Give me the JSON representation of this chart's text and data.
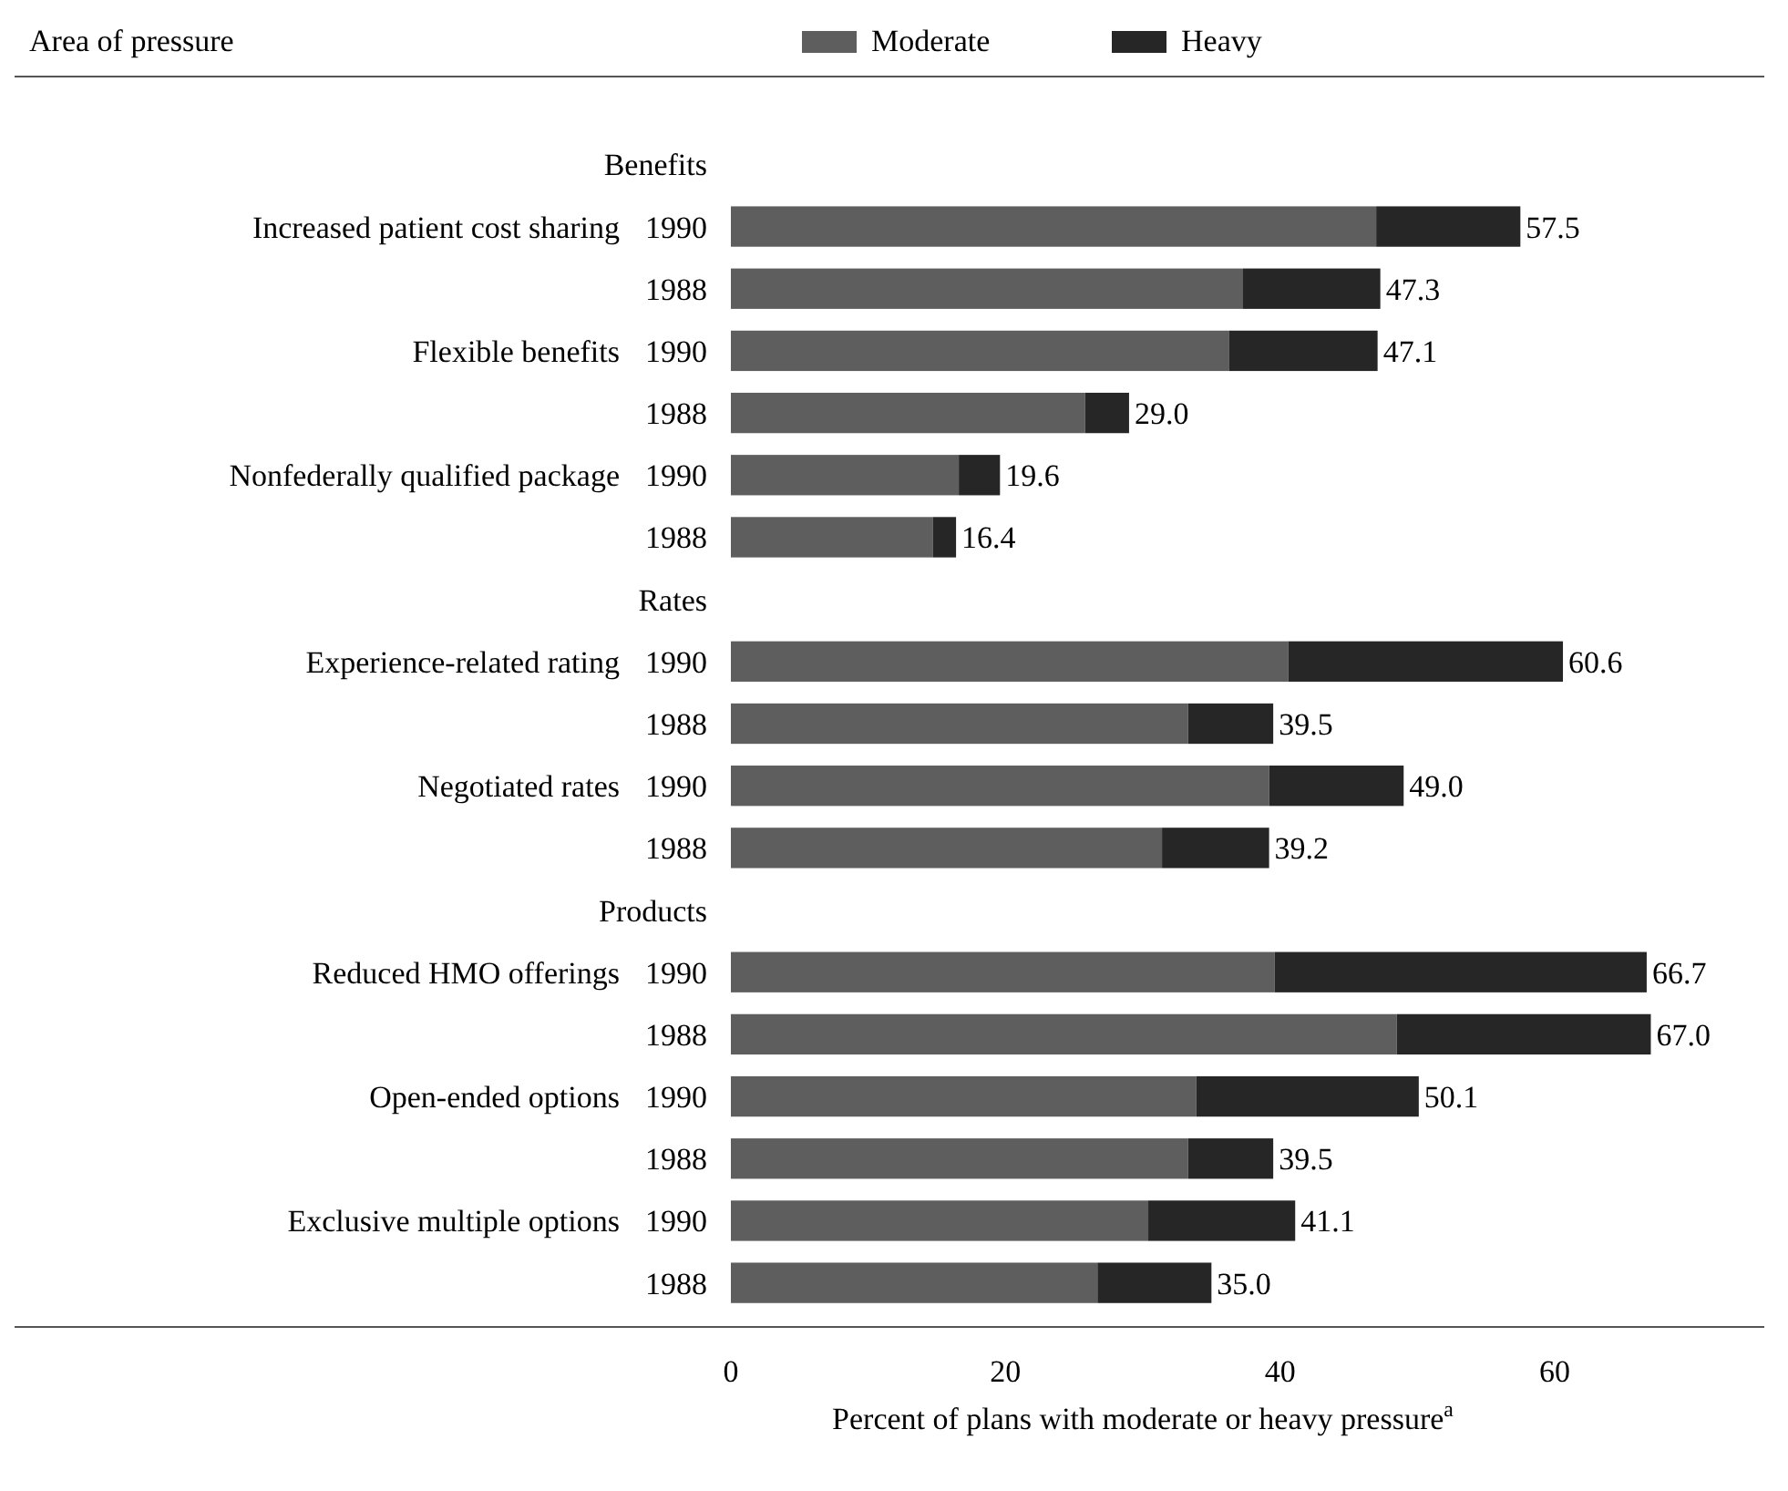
{
  "chart_data": {
    "type": "bar",
    "orientation": "horizontal",
    "stacked": true,
    "ylabel": "Area of pressure",
    "xlabel": "Percent of plans with moderate or heavy pressure$^{a}$",
    "legend": "top",
    "xlim": [
      0,
      75
    ],
    "xticks": [
      0,
      20,
      40,
      60
    ],
    "categories": [
      "Benefits",
      "Increased patient cost sharing 1990",
      "1988",
      "Flexible benefits 1990",
      "1988",
      "Nonfederally qualified package 1990",
      "1988",
      "Rates",
      "Experience-related rating 1990",
      "1988",
      "Negotiated rates 1990",
      "1988",
      "Products",
      "Reduced HMO offerings 1990",
      "1988",
      "Open-ended options 1990",
      "1988",
      "Exclusive multiple options 1990",
      "1988"
    ],
    "series": [
      {
        "name": "Moderate",
        "color": "#5e5e5e",
        "values": [
          null,
          47,
          37.3,
          36.3,
          25.8,
          16.6,
          14.7,
          null,
          40.6,
          33.3,
          39.2,
          31.4,
          null,
          39.6,
          48.5,
          33.9,
          33.3,
          30.4,
          26.7
        ]
      },
      {
        "name": "Heavy",
        "color": "#262626",
        "values": [
          null,
          10.5,
          10,
          10.8,
          3.2,
          3,
          1.7,
          null,
          20,
          6.2,
          9.8,
          7.8,
          null,
          27.1,
          18.5,
          16.2,
          6.2,
          10.7,
          8.3
        ]
      }
    ],
    "totals": [
      null,
      "57.5",
      "47.3",
      "47.1",
      "29.0",
      "19.6",
      "16.4",
      null,
      "60.6",
      "39.5",
      "49.0",
      "39.2",
      null,
      "66.7",
      "67.0",
      "50.1",
      "39.5",
      "41.1",
      "35.0"
    ]
  }
}
